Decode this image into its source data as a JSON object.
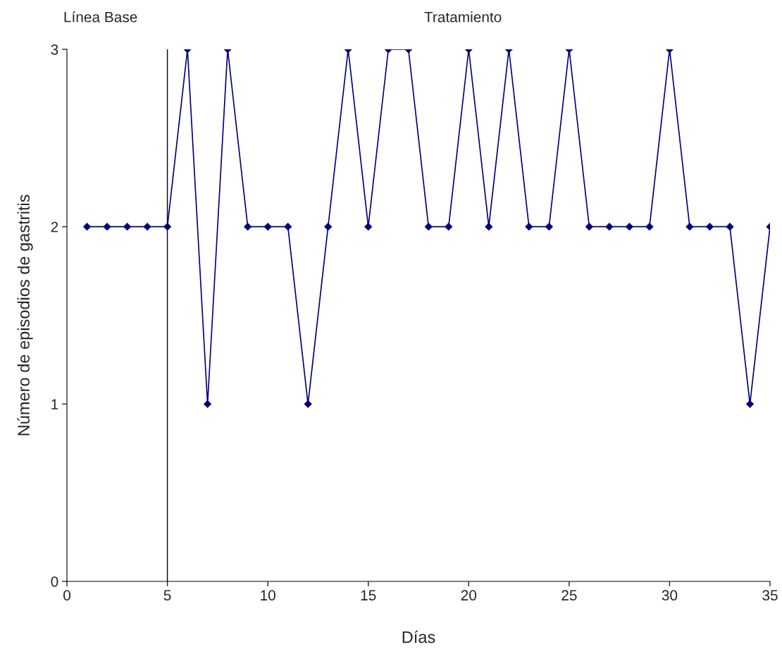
{
  "chart_data": {
    "type": "line",
    "xlabel": "Días",
    "ylabel": "Número de episodios de gastritis",
    "annotations": [
      "Línea Base",
      "Tratamiento"
    ],
    "x": [
      1,
      2,
      3,
      4,
      5,
      6,
      7,
      8,
      9,
      10,
      11,
      12,
      13,
      14,
      15,
      16,
      17,
      18,
      19,
      20,
      21,
      22,
      23,
      24,
      25,
      26,
      27,
      28,
      29,
      30,
      31,
      32,
      33,
      34,
      35
    ],
    "series": [
      {
        "color": "#000080",
        "values": [
          2,
          2,
          2,
          2,
          2,
          3,
          1,
          3,
          2,
          2,
          2,
          1,
          2,
          3,
          2,
          3,
          3,
          2,
          2,
          3,
          2,
          3,
          2,
          2,
          3,
          2,
          2,
          2,
          2,
          3,
          2,
          2,
          2,
          1,
          2
        ]
      }
    ],
    "xlim": [
      0,
      35
    ],
    "xticks": [
      0,
      5,
      10,
      15,
      20,
      25,
      30,
      35
    ],
    "ylim": [
      0,
      3
    ],
    "yticks": [
      0,
      1,
      2,
      3
    ],
    "ref_lines": [
      {
        "axis": "x",
        "value": 5,
        "color": "#000000",
        "line_style": "solid"
      }
    ],
    "grid": false,
    "legend": false,
    "marker": "diamond",
    "line_style": "solid"
  }
}
